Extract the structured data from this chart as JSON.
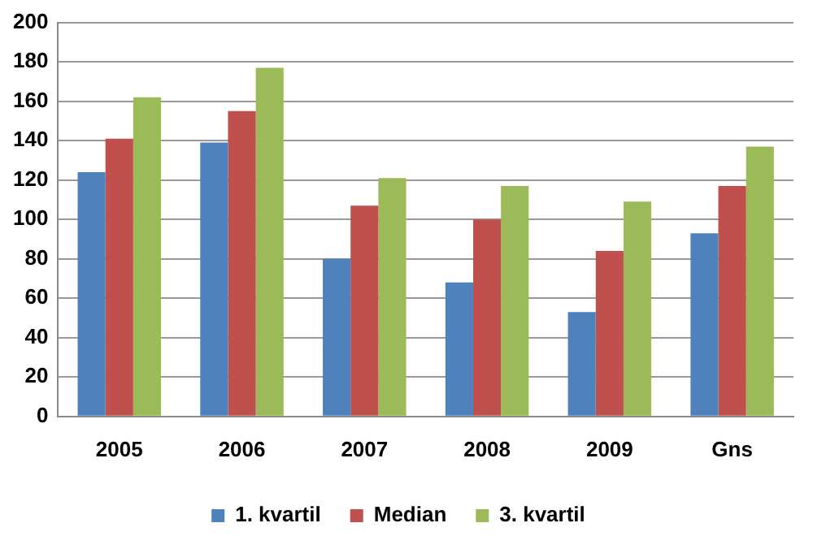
{
  "chart_data": {
    "type": "bar",
    "categories": [
      "2005",
      "2006",
      "2007",
      "2008",
      "2009",
      "Gns"
    ],
    "series": [
      {
        "name": "1. kvartil",
        "color": "#4f81bd",
        "values": [
          124,
          139,
          80,
          68,
          53,
          93
        ]
      },
      {
        "name": "Median",
        "color": "#c0504d",
        "values": [
          141,
          155,
          107,
          100,
          84,
          117
        ]
      },
      {
        "name": "3. kvartil",
        "color": "#9bbb59",
        "values": [
          162,
          177,
          121,
          117,
          109,
          137
        ]
      }
    ],
    "ylim": [
      0,
      200
    ],
    "yticks": [
      0,
      20,
      40,
      60,
      80,
      100,
      120,
      140,
      160,
      180,
      200
    ],
    "grid": "y",
    "legend": "bottom"
  }
}
